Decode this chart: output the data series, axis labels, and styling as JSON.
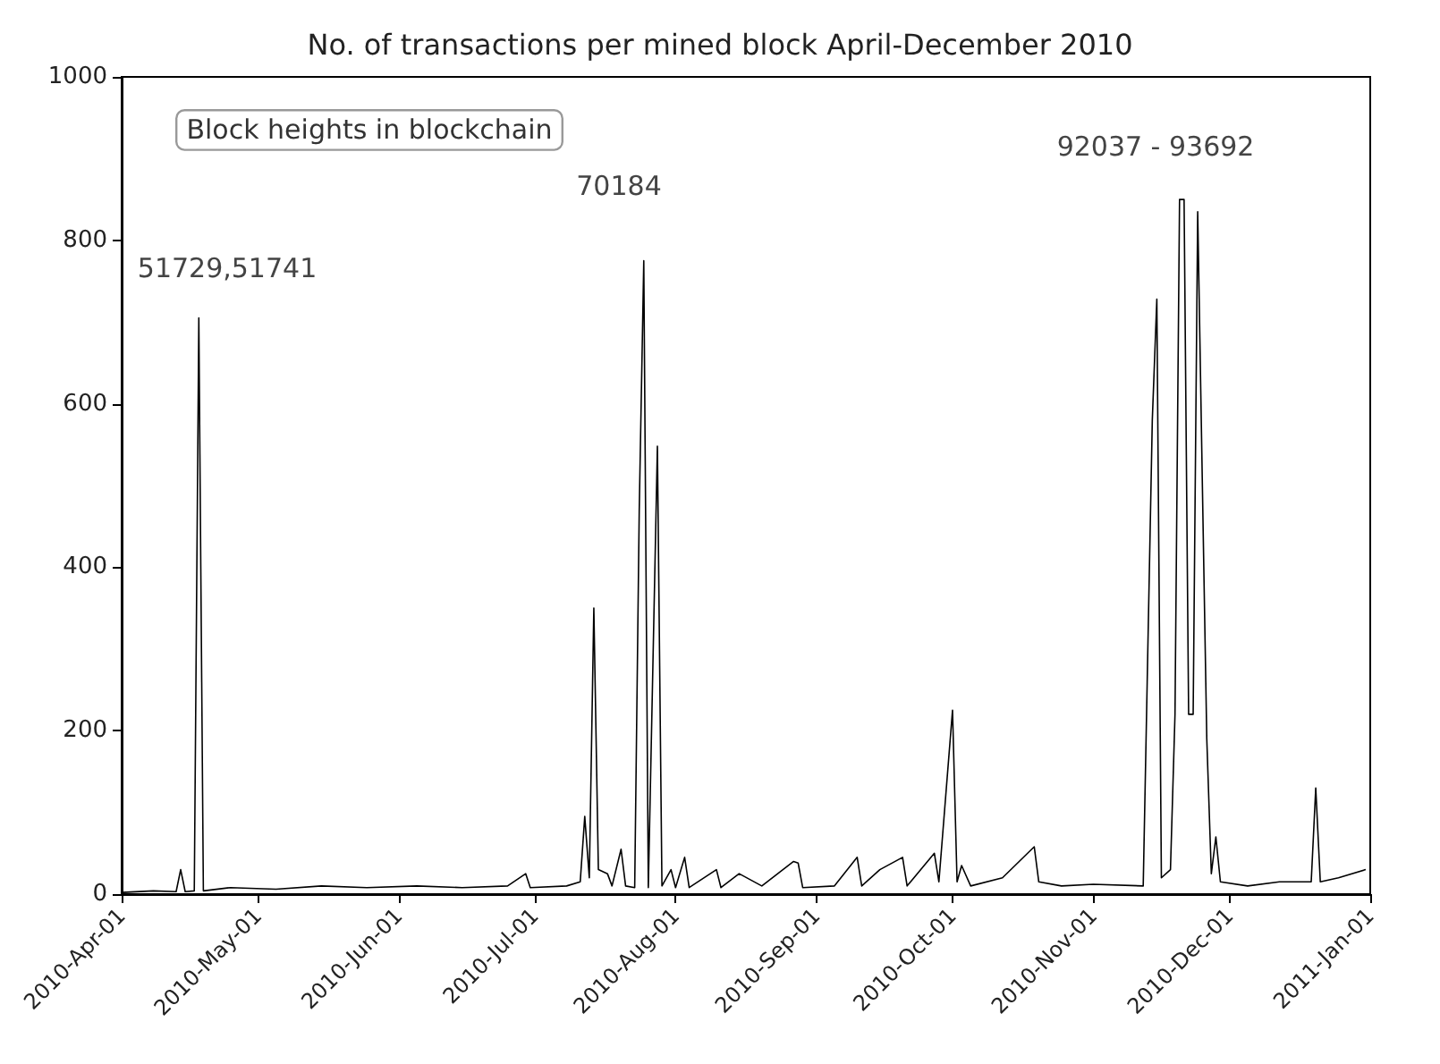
{
  "chart_data": {
    "type": "line",
    "title": "No. of transactions per mined block April-December 2010",
    "x": [
      "2010-04-01",
      "2010-04-08",
      "2010-04-13",
      "2010-04-14",
      "2010-04-15",
      "2010-04-17",
      "2010-04-18",
      "2010-04-19",
      "2010-04-25",
      "2010-05-05",
      "2010-05-15",
      "2010-05-25",
      "2010-06-05",
      "2010-06-15",
      "2010-06-25",
      "2010-06-29",
      "2010-06-30",
      "2010-07-08",
      "2010-07-11",
      "2010-07-12",
      "2010-07-13",
      "2010-07-14",
      "2010-07-15",
      "2010-07-17",
      "2010-07-18",
      "2010-07-20",
      "2010-07-21",
      "2010-07-23",
      "2010-07-24",
      "2010-07-25",
      "2010-07-26",
      "2010-07-28",
      "2010-07-29",
      "2010-07-31",
      "2010-08-01",
      "2010-08-03",
      "2010-08-04",
      "2010-08-10",
      "2010-08-11",
      "2010-08-15",
      "2010-08-20",
      "2010-08-27",
      "2010-08-28",
      "2010-08-29",
      "2010-09-05",
      "2010-09-10",
      "2010-09-11",
      "2010-09-15",
      "2010-09-20",
      "2010-09-21",
      "2010-09-27",
      "2010-09-28",
      "2010-10-01",
      "2010-10-02",
      "2010-10-03",
      "2010-10-05",
      "2010-10-12",
      "2010-10-19",
      "2010-10-20",
      "2010-10-25",
      "2010-11-01",
      "2010-11-12",
      "2010-11-14",
      "2010-11-15",
      "2010-11-16",
      "2010-11-18",
      "2010-11-19",
      "2010-11-20",
      "2010-11-21",
      "2010-11-22",
      "2010-11-23",
      "2010-11-24",
      "2010-11-25",
      "2010-11-26",
      "2010-11-27",
      "2010-11-28",
      "2010-11-29",
      "2010-12-05",
      "2010-12-12",
      "2010-12-19",
      "2010-12-20",
      "2010-12-21",
      "2010-12-25",
      "2010-12-31"
    ],
    "series": [
      {
        "color": "#000000",
        "values": [
          2,
          4,
          3,
          30,
          3,
          4,
          705,
          4,
          8,
          6,
          10,
          8,
          10,
          8,
          10,
          25,
          8,
          10,
          15,
          95,
          20,
          350,
          30,
          25,
          10,
          55,
          10,
          8,
          470,
          775,
          8,
          548,
          10,
          30,
          8,
          45,
          8,
          30,
          8,
          25,
          10,
          40,
          38,
          8,
          10,
          45,
          10,
          30,
          45,
          10,
          50,
          15,
          225,
          15,
          35,
          10,
          20,
          58,
          15,
          10,
          12,
          10,
          580,
          728,
          20,
          30,
          220,
          850,
          850,
          220,
          220,
          835,
          510,
          190,
          25,
          70,
          15,
          10,
          15,
          15,
          130,
          15,
          20,
          30
        ]
      }
    ],
    "xlim": [
      "2010-04-01",
      "2011-01-01"
    ],
    "xticks": [
      {
        "value": "2010-04-01",
        "label": "2010-Apr-01"
      },
      {
        "value": "2010-05-01",
        "label": "2010-May-01"
      },
      {
        "value": "2010-06-01",
        "label": "2010-Jun-01"
      },
      {
        "value": "2010-07-01",
        "label": "2010-Jul-01"
      },
      {
        "value": "2010-08-01",
        "label": "2010-Aug-01"
      },
      {
        "value": "2010-09-01",
        "label": "2010-Sep-01"
      },
      {
        "value": "2010-10-01",
        "label": "2010-Oct-01"
      },
      {
        "value": "2010-11-01",
        "label": "2010-Nov-01"
      },
      {
        "value": "2010-12-01",
        "label": "2010-Dec-01"
      },
      {
        "value": "2011-01-01",
        "label": "2011-Jan-01"
      }
    ],
    "ylim": [
      0,
      1000
    ],
    "yticks": [
      0,
      200,
      400,
      600,
      800,
      1000
    ],
    "annotations": [
      "Block heights in blockchain",
      "51729,51741",
      "70184",
      "92037 - 93692"
    ],
    "grid": false,
    "marker": "none",
    "line_style": "solid"
  }
}
